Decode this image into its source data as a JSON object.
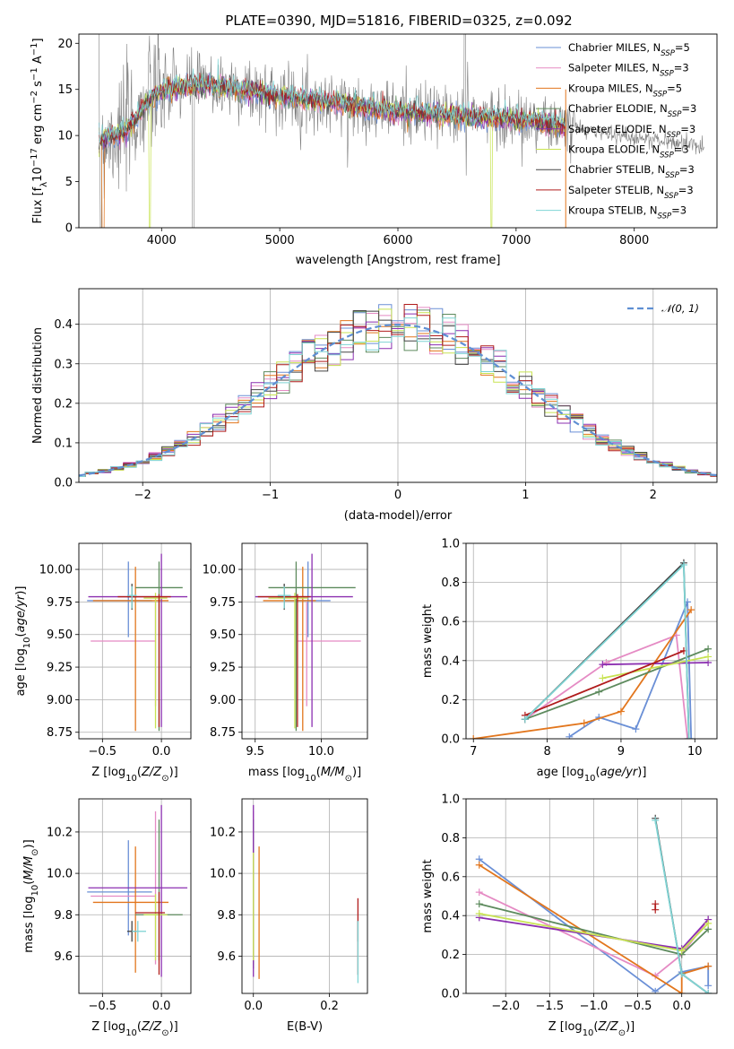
{
  "title": "PLATE=0390, MJD=51816, FIBERID=0325, z=0.092",
  "series_colors": [
    "#6a8fd6",
    "#e58bc4",
    "#e2761d",
    "#5d8a5d",
    "#8b2fb0",
    "#c8e352",
    "#444444",
    "#b01c1c",
    "#7fd4d4"
  ],
  "legend_spectrum": [
    {
      "name": "Chabrier MILES, N",
      "sub": "SSP",
      "suffix": "=5",
      "color": "#6a8fd6"
    },
    {
      "name": "Salpeter MILES, N",
      "sub": "SSP",
      "suffix": "=3",
      "color": "#e58bc4"
    },
    {
      "name": "Kroupa MILES, N",
      "sub": "SSP",
      "suffix": "=5",
      "color": "#e2761d"
    },
    {
      "name": "Chabrier ELODIE, N",
      "sub": "SSP",
      "suffix": "=3",
      "color": "#5d8a5d"
    },
    {
      "name": "Salpeter ELODIE, N",
      "sub": "SSP",
      "suffix": "=3",
      "color": "#8b2fb0"
    },
    {
      "name": "Kroupa ELODIE, N",
      "sub": "SSP",
      "suffix": "=3",
      "color": "#c8e352"
    },
    {
      "name": "Chabrier STELIB, N",
      "sub": "SSP",
      "suffix": "=3",
      "color": "#444444"
    },
    {
      "name": "Salpeter STELIB, N",
      "sub": "SSP",
      "suffix": "=3",
      "color": "#b01c1c"
    },
    {
      "name": "Kroupa STELIB, N",
      "sub": "SSP",
      "suffix": "=3",
      "color": "#7fd4d4"
    }
  ],
  "chart_data": [
    {
      "id": "spectrum",
      "type": "line",
      "xlabel": "wavelength [Angstrom, rest frame]",
      "ylabel": "Flux [f_λ 10^-17 erg cm^-2 s^-1 A^-1]",
      "xlim": [
        3300,
        8700
      ],
      "ylim": [
        0,
        21
      ],
      "xticks": [
        4000,
        5000,
        6000,
        7000,
        8000
      ],
      "yticks": [
        0,
        5,
        10,
        15,
        20
      ],
      "data_x_range": [
        3470,
        8590
      ],
      "model_x_range": [
        3470,
        7420
      ],
      "continuum_anchors": {
        "x": [
          3470,
          3700,
          3850,
          3950,
          4050,
          4300,
          4600,
          5000,
          5500,
          6000,
          6500,
          7000,
          7400,
          8000,
          8500,
          8590
        ],
        "y": [
          9.5,
          10.5,
          13.0,
          14.5,
          15.0,
          15.5,
          15.2,
          14.3,
          13.5,
          12.6,
          12.2,
          11.8,
          11.0,
          9.8,
          9.0,
          8.8
        ]
      },
      "grid": false,
      "legend_position": "upper right"
    },
    {
      "id": "residual-histogram",
      "type": "histogram",
      "xlabel": "(data-model)/error",
      "ylabel": "Normed distribution",
      "xlim": [
        -2.5,
        2.5
      ],
      "ylim": [
        0,
        0.49
      ],
      "xticks": [
        -2,
        -1,
        0,
        1,
        2
      ],
      "yticks": [
        0.0,
        0.1,
        0.2,
        0.3,
        0.4
      ],
      "bin_width": 0.1,
      "reference_curve": "normal(0,1)",
      "legend": [
        "𝒩(0, 1)"
      ],
      "legend_position": "upper right",
      "grid": true
    },
    {
      "id": "age-vs-Z",
      "type": "errorbar",
      "xlabel": "Z [log10(Z/Z☉)]",
      "ylabel": "age  [log10(age/yr)]",
      "xlim": [
        -0.7,
        0.25
      ],
      "ylim": [
        8.7,
        10.2
      ],
      "xticks": [
        -0.5,
        0.0
      ],
      "yticks": [
        8.75,
        9.0,
        9.25,
        9.5,
        9.75,
        10.0
      ],
      "points": [
        {
          "x": -0.28,
          "y": 9.76,
          "xerr": [
            0.35,
            0.2
          ],
          "yerr": [
            0.28,
            0.3
          ]
        },
        {
          "x": -0.05,
          "y": 9.45,
          "xerr": [
            0.55,
            0.0
          ],
          "yerr": [
            0.5,
            0.3
          ]
        },
        {
          "x": -0.22,
          "y": 9.76,
          "xerr": [
            0.36,
            0.28
          ],
          "yerr": [
            1.0,
            0.26
          ]
        },
        {
          "x": -0.02,
          "y": 9.86,
          "xerr": [
            0.2,
            0.2
          ],
          "yerr": [
            1.1,
            0.2
          ]
        },
        {
          "x": 0.0,
          "y": 9.79,
          "xerr": [
            0.62,
            0.22
          ],
          "yerr": [
            1.0,
            0.33
          ]
        },
        {
          "x": -0.05,
          "y": 9.78,
          "xerr": [
            0.1,
            0.1
          ],
          "yerr": [
            1.0,
            0.04
          ]
        },
        {
          "x": -0.25,
          "y": 9.79,
          "xerr": [
            0.04,
            0.04
          ],
          "yerr": [
            0.1,
            0.1
          ]
        },
        {
          "x": -0.02,
          "y": 9.79,
          "xerr": [
            0.35,
            0.1
          ],
          "yerr": [
            1.0,
            0.02
          ]
        },
        {
          "x": -0.25,
          "y": 9.8,
          "xerr": [
            0.04,
            0.04
          ],
          "yerr": [
            0.1,
            0.07
          ]
        }
      ],
      "grid": true
    },
    {
      "id": "age-vs-mass",
      "type": "errorbar",
      "xlabel": "mass [log10(M/M☉)]",
      "ylabel": "",
      "xlim": [
        9.4,
        10.35
      ],
      "ylim": [
        8.7,
        10.2
      ],
      "xticks": [
        9.5,
        10.0
      ],
      "yticks": [
        8.75,
        9.0,
        9.25,
        9.5,
        9.75,
        10.0
      ],
      "points": [
        {
          "x": 9.9,
          "y": 9.76,
          "xerr": [
            0.18,
            0.17
          ],
          "yerr": [
            0.28,
            0.3
          ]
        },
        {
          "x": 9.89,
          "y": 9.45,
          "xerr": [
            0.07,
            0.41
          ],
          "yerr": [
            0.5,
            0.3
          ]
        },
        {
          "x": 9.86,
          "y": 9.76,
          "xerr": [
            0.3,
            0.1
          ],
          "yerr": [
            1.0,
            0.26
          ]
        },
        {
          "x": 9.81,
          "y": 9.86,
          "xerr": [
            0.21,
            0.45
          ],
          "yerr": [
            1.1,
            0.2
          ]
        },
        {
          "x": 9.93,
          "y": 9.79,
          "xerr": [
            0.43,
            0.31
          ],
          "yerr": [
            1.0,
            0.33
          ]
        },
        {
          "x": 9.8,
          "y": 9.78,
          "xerr": [
            0.2,
            0.1
          ],
          "yerr": [
            1.0,
            0.04
          ]
        },
        {
          "x": 9.72,
          "y": 9.79,
          "xerr": [
            0.05,
            0.05
          ],
          "yerr": [
            0.1,
            0.1
          ]
        },
        {
          "x": 9.82,
          "y": 9.79,
          "xerr": [
            0.3,
            0.1
          ],
          "yerr": [
            1.0,
            0.02
          ]
        },
        {
          "x": 9.72,
          "y": 9.8,
          "xerr": [
            0.05,
            0.05
          ],
          "yerr": [
            0.1,
            0.07
          ]
        }
      ],
      "grid": true
    },
    {
      "id": "mass-weight-vs-age",
      "type": "line",
      "xlabel": "age  [log10(age/yr)]",
      "ylabel": "mass weight",
      "xlim": [
        6.9,
        10.3
      ],
      "ylim": [
        0,
        1.0
      ],
      "xticks": [
        7,
        8,
        9,
        10
      ],
      "yticks": [
        0.0,
        0.2,
        0.4,
        0.6,
        0.8,
        1.0
      ],
      "series": [
        {
          "x": [
            8.3,
            8.7,
            9.2,
            9.9,
            9.95
          ],
          "y": [
            0.01,
            0.11,
            0.05,
            0.7,
            0.0
          ]
        },
        {
          "x": [
            7.7,
            8.8,
            9.75,
            9.9
          ],
          "y": [
            0.1,
            0.39,
            0.53,
            0.0
          ]
        },
        {
          "x": [
            7.0,
            8.5,
            9.0,
            9.95
          ],
          "y": [
            0.0,
            0.08,
            0.14,
            0.66
          ]
        },
        {
          "x": [
            7.7,
            8.7,
            10.18
          ],
          "y": [
            0.1,
            0.24,
            0.46
          ]
        },
        {
          "x": [
            8.75,
            10.18
          ],
          "y": [
            0.38,
            0.39
          ]
        },
        {
          "x": [
            8.75,
            10.18
          ],
          "y": [
            0.31,
            0.42
          ]
        },
        {
          "x": [
            7.7,
            9.85,
            9.92
          ],
          "y": [
            0.1,
            0.9,
            0.0
          ]
        },
        {
          "x": [
            7.7,
            9.85
          ],
          "y": [
            0.12,
            0.45
          ]
        },
        {
          "x": [
            7.7,
            9.85,
            9.92
          ],
          "y": [
            0.1,
            0.89,
            0.0
          ]
        }
      ],
      "grid": true
    },
    {
      "id": "mass-vs-Z",
      "type": "errorbar",
      "xlabel": "Z [log10(Z/Z☉)]",
      "ylabel": "mass [log10(M/M☉)]",
      "xlim": [
        -0.7,
        0.25
      ],
      "ylim": [
        9.42,
        10.36
      ],
      "xticks": [
        -0.5,
        0.0
      ],
      "yticks": [
        9.6,
        9.8,
        10.0,
        10.2
      ],
      "points": [
        {
          "x": -0.28,
          "y": 9.91,
          "xerr": [
            0.35,
            0.2
          ],
          "yerr": [
            0.21,
            0.25
          ]
        },
        {
          "x": -0.05,
          "y": 9.89,
          "xerr": [
            0.55,
            0.0
          ],
          "yerr": [
            0.33,
            0.41
          ]
        },
        {
          "x": -0.22,
          "y": 9.86,
          "xerr": [
            0.36,
            0.28
          ],
          "yerr": [
            0.34,
            0.27
          ]
        },
        {
          "x": -0.02,
          "y": 9.8,
          "xerr": [
            0.2,
            0.2
          ],
          "yerr": [
            0.22,
            0.46
          ]
        },
        {
          "x": 0.0,
          "y": 9.93,
          "xerr": [
            0.62,
            0.22
          ],
          "yerr": [
            0.43,
            0.4
          ]
        },
        {
          "x": -0.05,
          "y": 9.8,
          "xerr": [
            0.1,
            0.1
          ],
          "yerr": [
            0.22,
            0.1
          ]
        },
        {
          "x": -0.25,
          "y": 9.72,
          "xerr": [
            0.04,
            0.04
          ],
          "yerr": [
            0.05,
            0.05
          ]
        },
        {
          "x": -0.02,
          "y": 9.81,
          "xerr": [
            0.2,
            0.05
          ],
          "yerr": [
            0.3,
            0.1
          ]
        },
        {
          "x": -0.2,
          "y": 9.72,
          "xerr": [
            0.05,
            0.07
          ],
          "yerr": [
            0.05,
            0.05
          ]
        }
      ],
      "grid": true
    },
    {
      "id": "mass-vs-EBV",
      "type": "errorbar",
      "xlabel": "E(B-V)",
      "ylabel": "",
      "xlim": [
        -0.03,
        0.3
      ],
      "ylim": [
        9.42,
        10.36
      ],
      "xticks": [
        0.0,
        0.2
      ],
      "yticks": [
        9.6,
        9.8,
        10.0,
        10.2
      ],
      "points": [
        {
          "x": 0.0,
          "y": 9.91,
          "xerr": [
            0,
            0
          ],
          "yerr": [
            0.21,
            0.25
          ]
        },
        {
          "x": 0.0,
          "y": 9.89,
          "xerr": [
            0,
            0
          ],
          "yerr": [
            0.33,
            0.41
          ]
        },
        {
          "x": 0.015,
          "y": 9.86,
          "xerr": [
            0,
            0
          ],
          "yerr": [
            0.37,
            0.27
          ]
        },
        {
          "x": 0.0,
          "y": 9.8,
          "xerr": [
            0,
            0
          ],
          "yerr": [
            0.26,
            0.46
          ]
        },
        {
          "x": 0.0,
          "y": 9.93,
          "xerr": [
            0,
            0
          ],
          "yerr": [
            0.43,
            0.4
          ]
        },
        {
          "x": 0.0,
          "y": 9.8,
          "xerr": [
            0,
            0
          ],
          "yerr": [
            0.22,
            0.3
          ]
        },
        {
          "x": 0.275,
          "y": 9.72,
          "xerr": [
            0,
            0
          ],
          "yerr": [
            0.05,
            0.05
          ]
        },
        {
          "x": 0.275,
          "y": 9.81,
          "xerr": [
            0,
            0
          ],
          "yerr": [
            0.3,
            0.07
          ]
        },
        {
          "x": 0.275,
          "y": 9.72,
          "xerr": [
            0,
            0
          ],
          "yerr": [
            0.25,
            0.05
          ]
        }
      ],
      "grid": true
    },
    {
      "id": "mass-weight-vs-Z",
      "type": "line",
      "xlabel": "Z [log10(Z/Z☉)]",
      "ylabel": "mass weight",
      "xlim": [
        -2.45,
        0.4
      ],
      "ylim": [
        0,
        1.0
      ],
      "xticks": [
        -2.0,
        -1.5,
        -1.0,
        -0.5,
        0.0
      ],
      "yticks": [
        0.0,
        0.2,
        0.4,
        0.6,
        0.8,
        1.0
      ],
      "series": [
        {
          "x": [
            -2.3,
            -0.3,
            0.0,
            0.3,
            0.3
          ],
          "y": [
            0.69,
            0.01,
            0.11,
            0.14,
            0.04
          ]
        },
        {
          "x": [
            -2.3,
            -0.3,
            0.0,
            0.3
          ],
          "y": [
            0.52,
            0.09,
            0.2,
            0.38
          ]
        },
        {
          "x": [
            -2.3,
            0.0,
            0.0,
            0.3
          ],
          "y": [
            0.66,
            0.0,
            0.1,
            0.14
          ]
        },
        {
          "x": [
            -2.3,
            0.0,
            0.3
          ],
          "y": [
            0.46,
            0.2,
            0.33
          ]
        },
        {
          "x": [
            -2.3,
            0.0,
            0.3
          ],
          "y": [
            0.39,
            0.23,
            0.38
          ]
        },
        {
          "x": [
            -2.3,
            0.0,
            0.3
          ],
          "y": [
            0.41,
            0.22,
            0.36
          ]
        },
        {
          "x": [
            -0.3,
            0.0,
            0.3
          ],
          "y": [
            0.9,
            0.1,
            0.0
          ]
        },
        {
          "x": [
            -0.3,
            -0.3
          ],
          "y": [
            0.46,
            0.43
          ]
        },
        {
          "x": [
            -0.3,
            0.0,
            0.3
          ],
          "y": [
            0.89,
            0.1,
            0.0
          ]
        }
      ],
      "grid": true
    }
  ]
}
